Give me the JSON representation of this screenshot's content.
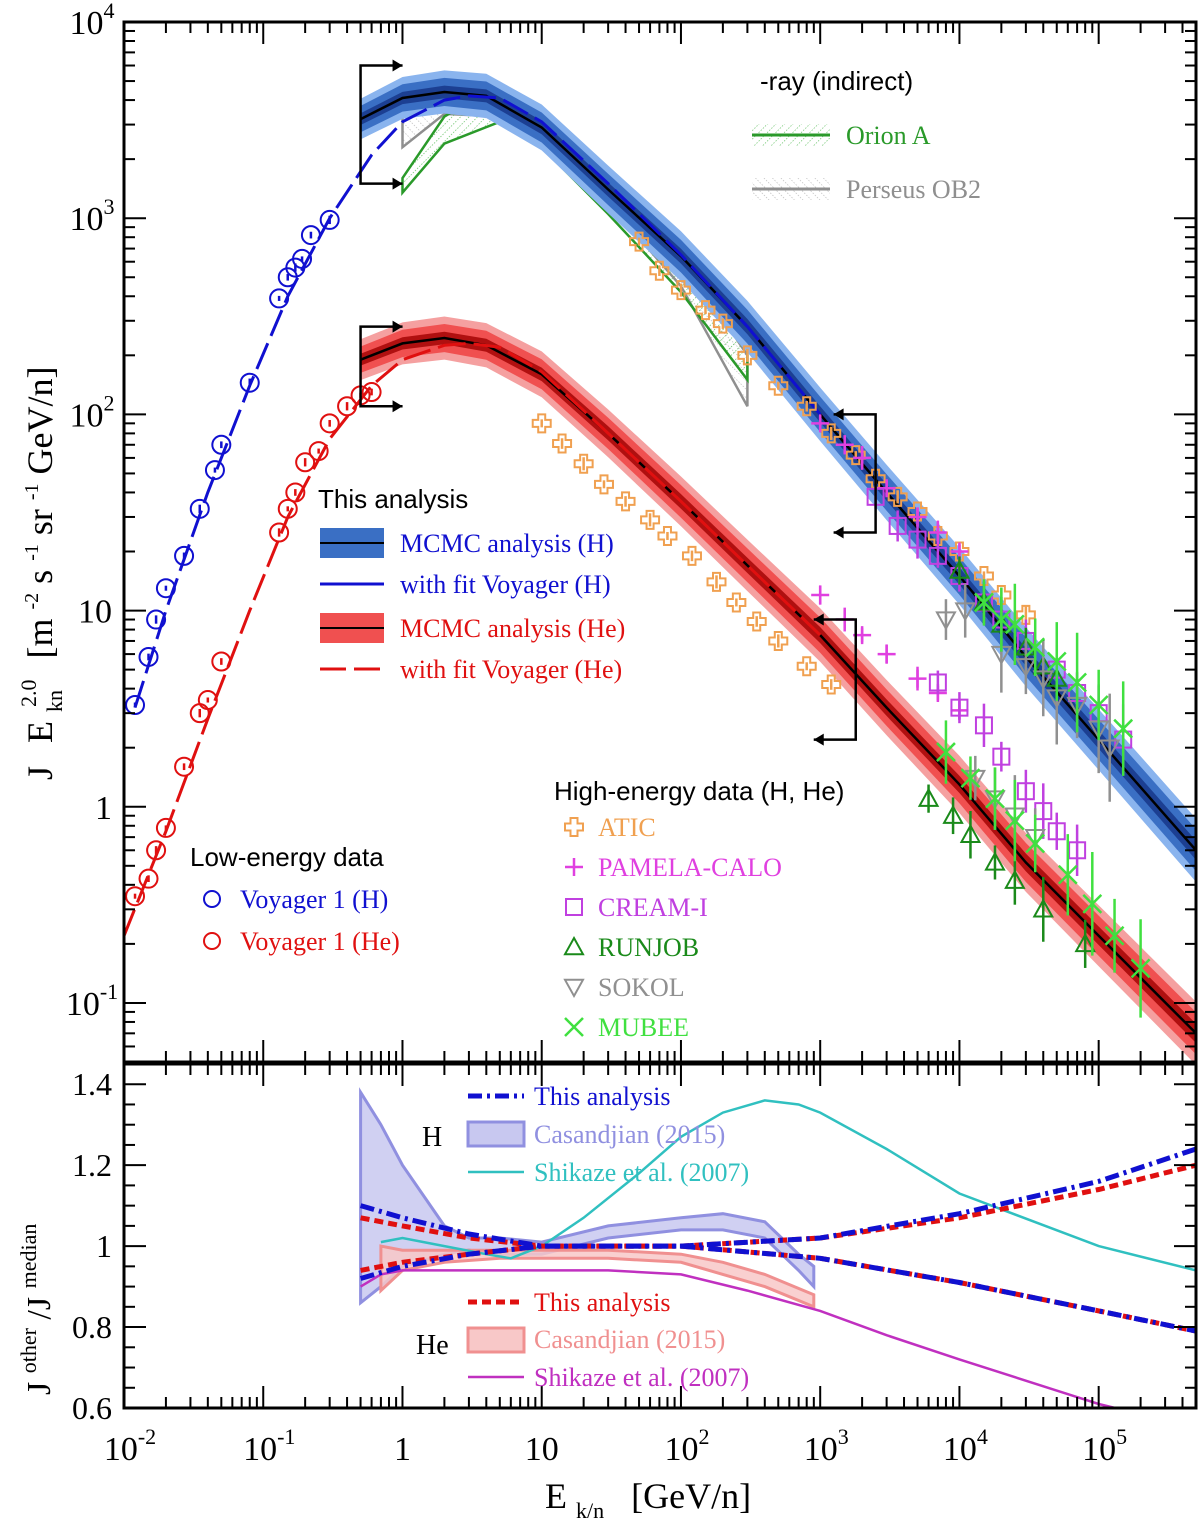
{
  "chart_data": [
    {
      "type": "scatter",
      "panel": "top",
      "xscale": "log",
      "yscale": "log",
      "xlim": [
        0.01,
        500000
      ],
      "ylim": [
        0.05,
        10000
      ],
      "ylabel": "J  E_kn^2.0  [m^-2 s^-1 sr^-1 GeV/n]",
      "ylabel_parts": {
        "j": "J",
        "e": "E",
        "kn": "kn",
        "pow": "2.0",
        "unit": "[m",
        "e1": "-2",
        "s": " s",
        "e2": "-1",
        "sr": " sr",
        "e3": "-1",
        "gev": " GeV/n]"
      },
      "yticks": [
        {
          "v": 0.1,
          "base": "10",
          "exp": "-1"
        },
        {
          "v": 1,
          "label": "1"
        },
        {
          "v": 10,
          "label": "10"
        },
        {
          "v": 100,
          "base": "10",
          "exp": "2"
        },
        {
          "v": 1000,
          "base": "10",
          "exp": "3"
        },
        {
          "v": 10000,
          "base": "10",
          "exp": "4"
        }
      ],
      "legend_gamma": {
        "title": "-ray (indirect)",
        "entries": [
          {
            "name": "Orion A",
            "color": "#2a9a2a"
          },
          {
            "name": "Perseus OB2",
            "color": "#8f8f8f"
          }
        ]
      },
      "legend_analysis": {
        "title": "This analysis",
        "entries": [
          {
            "name": "MCMC analysis (H)",
            "color": "#1010d0",
            "band": "#3a6fc4"
          },
          {
            "name": "with fit Voyager (H)",
            "color": "#1010d0"
          },
          {
            "name": "MCMC analysis (He)",
            "color": "#e01010",
            "band": "#f05050"
          },
          {
            "name": "with fit Voyager (He)",
            "color": "#e01010"
          }
        ]
      },
      "legend_low": {
        "title": "Low-energy data",
        "entries": [
          {
            "name": "Voyager 1 (H)",
            "color": "#1010d0"
          },
          {
            "name": "Voyager 1 (He)",
            "color": "#e01010"
          }
        ]
      },
      "legend_high": {
        "title": "High-energy data (H, He)",
        "entries": [
          {
            "name": "ATIC",
            "color": "#f0a050",
            "marker": "plus-open"
          },
          {
            "name": "PAMELA-CALO",
            "color": "#e040e0",
            "marker": "plus"
          },
          {
            "name": "CREAM-I",
            "color": "#c040e0",
            "marker": "square"
          },
          {
            "name": "RUNJOB",
            "color": "#1a8a1a",
            "marker": "triangle"
          },
          {
            "name": "SOKOL",
            "color": "#909090",
            "marker": "triangle-down"
          },
          {
            "name": "MUBEE",
            "color": "#40e040",
            "marker": "cross"
          }
        ]
      },
      "band_H": {
        "x": [
          0.5,
          1,
          2,
          4,
          10,
          30,
          100,
          300,
          1000,
          3000,
          10000,
          30000,
          100000,
          500000
        ],
        "y": [
          3200,
          4100,
          4400,
          4200,
          2900,
          1400,
          640,
          280,
          100,
          40,
          15,
          5.8,
          2.2,
          0.6
        ]
      },
      "band_He": {
        "x": [
          0.5,
          1,
          2,
          4,
          10,
          30,
          100,
          300,
          1000,
          3000,
          10000,
          30000,
          100000,
          500000
        ],
        "y": [
          190,
          230,
          245,
          225,
          160,
          80,
          36,
          17,
          7.5,
          3.2,
          1.3,
          0.52,
          0.22,
          0.07
        ]
      },
      "fit_H": {
        "x": [
          0.012,
          0.02,
          0.04,
          0.08,
          0.15,
          0.3,
          0.6,
          1,
          2,
          3,
          5,
          10,
          30,
          100,
          300,
          1000
        ],
        "y": [
          3.2,
          10,
          40,
          140,
          400,
          1000,
          2100,
          3100,
          4000,
          4200,
          4100,
          3100,
          1500,
          650,
          280,
          100
        ]
      },
      "fit_He": {
        "x": [
          0.01,
          0.02,
          0.04,
          0.08,
          0.15,
          0.3,
          0.6,
          1,
          2,
          3,
          5,
          10,
          30,
          100,
          300,
          1000
        ],
        "y": [
          0.22,
          0.75,
          2.8,
          10,
          30,
          75,
          140,
          190,
          225,
          230,
          220,
          165,
          80,
          36,
          17,
          7.5
        ]
      },
      "voyager_H": {
        "x": [
          0.012,
          0.015,
          0.017,
          0.02,
          0.027,
          0.035,
          0.045,
          0.05,
          0.08,
          0.13,
          0.15,
          0.17,
          0.19,
          0.22,
          0.3
        ],
        "y": [
          3.3,
          5.8,
          9,
          13,
          19,
          33,
          52,
          70,
          145,
          390,
          500,
          560,
          620,
          820,
          980
        ]
      },
      "voyager_He": {
        "x": [
          0.012,
          0.015,
          0.017,
          0.02,
          0.027,
          0.035,
          0.04,
          0.05,
          0.13,
          0.15,
          0.17,
          0.2,
          0.25,
          0.3,
          0.4,
          0.5,
          0.6
        ],
        "y": [
          0.35,
          0.43,
          0.6,
          0.78,
          1.6,
          3,
          3.5,
          5.5,
          25,
          33,
          40,
          57,
          65,
          90,
          110,
          125,
          130
        ]
      },
      "atic": {
        "x": [
          50,
          70,
          100,
          150,
          200,
          300,
          500,
          800,
          1200,
          1800,
          2500,
          3600,
          5000,
          7000,
          10000,
          15000,
          20000,
          30000,
          10,
          14,
          20,
          28,
          40,
          60,
          80,
          120,
          180,
          250,
          350,
          500,
          800,
          1200
        ],
        "y": [
          760,
          540,
          430,
          340,
          290,
          200,
          140,
          110,
          80,
          62,
          47,
          38,
          32,
          24,
          20,
          15,
          12,
          9.5,
          90,
          71,
          56,
          44,
          36,
          29,
          24,
          19,
          14,
          11,
          8.8,
          7,
          5.2,
          4.2
        ]
      },
      "pamela": {
        "x": [
          1000,
          1500,
          2000,
          3000,
          5000,
          7000,
          10000,
          1000,
          1500,
          2000,
          3000,
          5000,
          7000,
          10000
        ],
        "y": [
          90,
          70,
          60,
          42,
          30,
          25,
          20,
          12,
          9,
          7.5,
          6,
          4.5,
          3.8,
          3.1
        ]
      },
      "cream": {
        "x": [
          2500,
          3600,
          5000,
          7000,
          10000,
          15000,
          20000,
          30000,
          50000,
          70000,
          100000,
          150000,
          7000,
          10000,
          15000,
          20000,
          30000,
          40000,
          50000,
          70000
        ],
        "y": [
          38,
          27,
          23,
          19,
          15,
          11,
          9,
          7,
          5,
          3.8,
          3,
          2.2,
          4.3,
          3.2,
          2.6,
          1.8,
          1.2,
          0.95,
          0.75,
          0.6
        ]
      },
      "runjob": {
        "x": [
          10000,
          15000,
          20000,
          30000,
          40000,
          50000,
          6000,
          9000,
          12000,
          18000,
          25000,
          40000,
          80000
        ],
        "y": [
          16,
          11,
          8.5,
          6.5,
          5.2,
          4.5,
          1.1,
          0.9,
          0.72,
          0.52,
          0.42,
          0.3,
          0.2
        ]
      },
      "sokol": {
        "x": [
          8000,
          11000,
          20000,
          30000,
          40000,
          50000,
          70000,
          100000,
          120000,
          13000,
          18000,
          25000,
          35000
        ],
        "y": [
          9,
          10,
          6,
          5.2,
          4.5,
          3.6,
          3.3,
          2.5,
          2,
          1.4,
          1.1,
          0.9,
          0.7
        ]
      },
      "mubee": {
        "x": [
          15000,
          20000,
          25000,
          35000,
          50000,
          70000,
          100000,
          150000,
          8000,
          12000,
          18000,
          25000,
          35000,
          60000,
          90000,
          130000,
          200000
        ],
        "y": [
          11,
          9,
          8.5,
          6.5,
          5.5,
          4.3,
          3.3,
          2.5,
          1.9,
          1.4,
          1.1,
          0.85,
          0.65,
          0.45,
          0.32,
          0.22,
          0.15
        ]
      },
      "orion_A": {
        "x": [
          1,
          2,
          5,
          10,
          30,
          100,
          300
        ],
        "lower": [
          1350,
          2400,
          3100,
          2300,
          1050,
          420,
          150
        ],
        "upper": [
          1600,
          3300,
          4800,
          3700,
          1700,
          680,
          290
        ]
      },
      "perseus_OB2": {
        "x": [
          1,
          2,
          5,
          10,
          30,
          100,
          300
        ],
        "lower": [
          2300,
          3400,
          3300,
          2600,
          1200,
          450,
          110
        ],
        "upper": [
          4300,
          5400,
          4900,
          3500,
          1700,
          640,
          200
        ]
      },
      "arrows": {
        "solar_modulation_H": [
          1500,
          3500
        ],
        "solar_modulation_He": [
          110,
          280
        ],
        "high_H": [
          25,
          100
        ],
        "high_He": [
          2.2,
          9
        ]
      }
    },
    {
      "type": "line",
      "panel": "bottom",
      "xscale": "log",
      "xlim": [
        0.01,
        500000
      ],
      "ylim": [
        0.6,
        1.45
      ],
      "xlabel": "E_k/n  [GeV/n]",
      "xlabel_parts": {
        "e": "E",
        "sub": "k/n",
        "unit": "[GeV/n]"
      },
      "ylabel": "J^other/J^median",
      "ylabel_parts": {
        "j1": "J",
        "sup1": "other",
        "slash": "/J",
        "sup2": "median"
      },
      "yticks": [
        0.6,
        0.8,
        1,
        1.2,
        1.4
      ],
      "ytick_labels": [
        "0.6",
        "0.8",
        "1",
        "1.2",
        "1.4"
      ],
      "xticks": [
        {
          "v": 0.01,
          "base": "10",
          "exp": "-2"
        },
        {
          "v": 0.1,
          "base": "10",
          "exp": "-1"
        },
        {
          "v": 1,
          "label": "1"
        },
        {
          "v": 10,
          "label": "10"
        },
        {
          "v": 100,
          "base": "10",
          "exp": "2"
        },
        {
          "v": 1000,
          "base": "10",
          "exp": "3"
        },
        {
          "v": 10000,
          "base": "10",
          "exp": "4"
        },
        {
          "v": 100000,
          "base": "10",
          "exp": "5"
        }
      ],
      "labels": {
        "H": "H",
        "He": "He"
      },
      "legend_H": [
        {
          "name": "This analysis",
          "color": "#1010d0"
        },
        {
          "name": "Casandjian (2015)",
          "color": "#9090e0"
        },
        {
          "name": "Shikaze et al. (2007)",
          "color": "#30c0c0"
        }
      ],
      "legend_He": [
        {
          "name": "This analysis",
          "color": "#e01010"
        },
        {
          "name": "Casandjian (2015)",
          "color": "#f09090"
        },
        {
          "name": "Shikaze et al. (2007)",
          "color": "#c030c0"
        }
      ],
      "this_H_upper": {
        "x": [
          0.5,
          1,
          3,
          10,
          100,
          1000,
          10000,
          100000,
          500000
        ],
        "y": [
          1.1,
          1.07,
          1.03,
          1.0,
          1.0,
          1.02,
          1.08,
          1.16,
          1.24
        ]
      },
      "this_H_lower": {
        "x": [
          0.5,
          1,
          3,
          10,
          100,
          1000,
          10000,
          100000,
          500000
        ],
        "y": [
          0.92,
          0.95,
          0.98,
          1.0,
          1.0,
          0.97,
          0.91,
          0.84,
          0.79
        ]
      },
      "this_He_upper": {
        "x": [
          0.5,
          1,
          3,
          10,
          100,
          1000,
          10000,
          100000,
          500000
        ],
        "y": [
          1.07,
          1.05,
          1.02,
          1.0,
          1.0,
          1.02,
          1.07,
          1.14,
          1.2
        ]
      },
      "this_He_lower": {
        "x": [
          0.5,
          1,
          3,
          10,
          100,
          1000,
          10000,
          100000,
          500000
        ],
        "y": [
          0.94,
          0.96,
          0.98,
          1.0,
          1.0,
          0.97,
          0.91,
          0.84,
          0.79
        ]
      },
      "casandjian_H": {
        "x": [
          0.5,
          0.7,
          1,
          2,
          3,
          5,
          10,
          30,
          100,
          200,
          400,
          700,
          900
        ],
        "upper": [
          1.38,
          1.3,
          1.2,
          1.05,
          1.02,
          1.02,
          1.01,
          1.05,
          1.07,
          1.08,
          1.06,
          0.98,
          0.95
        ],
        "lower": [
          0.86,
          0.9,
          0.95,
          0.98,
          0.99,
          0.98,
          0.98,
          1.02,
          1.04,
          1.04,
          1.02,
          0.94,
          0.9
        ]
      },
      "casandjian_He": {
        "x": [
          0.7,
          1,
          2,
          5,
          10,
          30,
          100,
          200,
          400,
          900
        ],
        "upper": [
          1.0,
          0.99,
          0.99,
          0.99,
          0.99,
          0.99,
          0.98,
          0.96,
          0.93,
          0.88
        ],
        "lower": [
          0.89,
          0.94,
          0.96,
          0.97,
          0.97,
          0.97,
          0.96,
          0.93,
          0.9,
          0.85
        ]
      },
      "shikaze_H": {
        "x": [
          0.7,
          1,
          2,
          4,
          6,
          10,
          20,
          50,
          100,
          200,
          400,
          700,
          1000,
          3000,
          10000,
          100000,
          500000
        ],
        "y": [
          1.01,
          1.02,
          1.0,
          0.98,
          0.97,
          1.0,
          1.07,
          1.18,
          1.27,
          1.33,
          1.36,
          1.35,
          1.33,
          1.24,
          1.13,
          1.0,
          0.94
        ]
      },
      "shikaze_He": {
        "x": [
          0.5,
          0.7,
          1,
          2,
          5,
          10,
          30,
          100,
          300,
          1000,
          3000,
          10000,
          100000,
          300000
        ],
        "y": [
          0.9,
          0.93,
          0.94,
          0.94,
          0.94,
          0.94,
          0.94,
          0.93,
          0.89,
          0.84,
          0.78,
          0.72,
          0.61,
          0.57
        ]
      }
    }
  ]
}
